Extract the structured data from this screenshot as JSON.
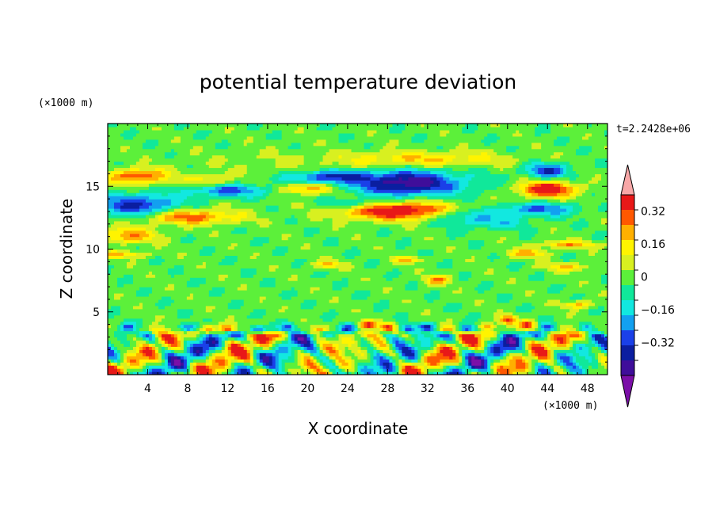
{
  "chart_data": {
    "type": "heatmap",
    "title": "potential temperature deviation",
    "xlabel": "X coordinate",
    "ylabel": "Z coordinate",
    "x_unit": "(×1000 m)",
    "y_unit": "(×1000 m)",
    "time_label": "t=2.2428e+06",
    "xlim": [
      0,
      50
    ],
    "ylim": [
      0,
      20
    ],
    "x_ticks": [
      "4",
      "8",
      "12",
      "16",
      "20",
      "24",
      "28",
      "32",
      "36",
      "40",
      "44",
      "48"
    ],
    "y_ticks": [
      "5",
      "10",
      "15"
    ],
    "colorbar": {
      "levels": [
        -0.48,
        -0.4,
        -0.32,
        -0.24,
        -0.16,
        -0.08,
        0,
        0.08,
        0.16,
        0.24,
        0.32,
        0.4
      ],
      "tick_labels": [
        "0.32",
        "0.16",
        "0",
        "−0.16",
        "−0.32"
      ],
      "extend": "both"
    },
    "features": [
      {
        "x": 30,
        "z": 15.3,
        "value": -0.45
      },
      {
        "x": 29,
        "z": 13.1,
        "value": 0.45
      },
      {
        "x": 44,
        "z": 14.8,
        "value": 0.45
      },
      {
        "x": 6,
        "z": 12.5,
        "value": 0.3
      },
      {
        "x": 3,
        "z": 13.5,
        "value": -0.36
      },
      {
        "x": 22,
        "z": 15.8,
        "value": -0.32
      },
      {
        "x": 43,
        "z": 16.3,
        "value": -0.32
      },
      {
        "x": 12,
        "z": 14.6,
        "value": -0.3
      },
      {
        "x": 20,
        "z": 14.8,
        "value": 0.3
      },
      {
        "x": 3,
        "z": 15.8,
        "value": 0.35
      }
    ]
  },
  "colors": {
    "palette": [
      "#7b0fa8",
      "#3f0e9a",
      "#0b1ea0",
      "#1a40e8",
      "#12a0f0",
      "#12e8e0",
      "#10e89a",
      "#5cf03a",
      "#d8f020",
      "#fff400",
      "#ffb000",
      "#ff5800",
      "#e81818",
      "#f8a8a8"
    ],
    "frame": "#000000"
  }
}
